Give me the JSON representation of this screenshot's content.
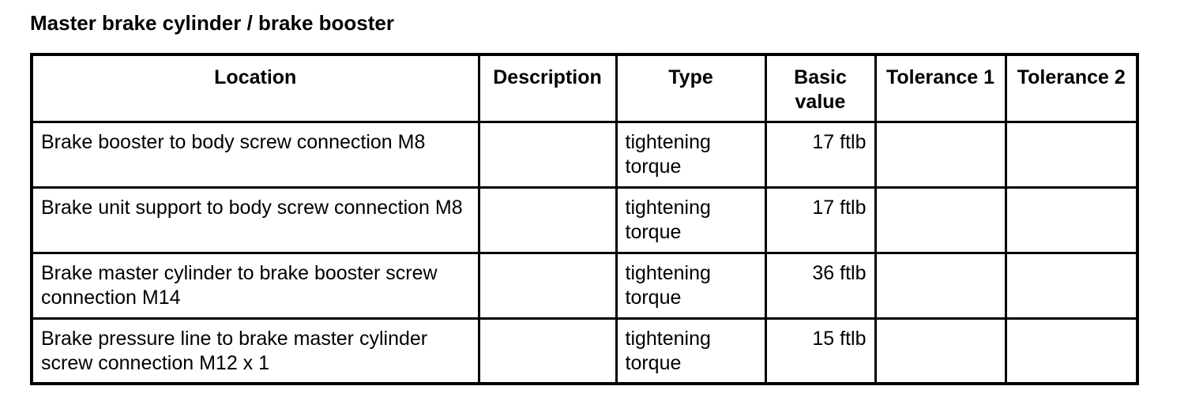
{
  "title": "Master brake cylinder / brake booster",
  "headers": [
    "Location",
    "Description",
    "Type",
    "Basic value",
    "Tolerance 1",
    "Tolerance 2"
  ],
  "rows": [
    {
      "location": "Brake booster to body screw connection M8",
      "description": "",
      "type": "tightening torque",
      "basic_value": "17 ftlb",
      "tolerance1": "",
      "tolerance2": ""
    },
    {
      "location": "Brake unit support to body screw connection M8",
      "description": "",
      "type": "tightening torque",
      "basic_value": "17 ftlb",
      "tolerance1": "",
      "tolerance2": ""
    },
    {
      "location": "Brake master cylinder to brake booster screw connection M14",
      "description": "",
      "type": "tightening torque",
      "basic_value": "36 ftlb",
      "tolerance1": "",
      "tolerance2": ""
    },
    {
      "location": "Brake pressure line to brake master cylinder screw connection M12 x 1",
      "description": "",
      "type": "tightening torque",
      "basic_value": "15 ftlb",
      "tolerance1": "",
      "tolerance2": ""
    }
  ]
}
